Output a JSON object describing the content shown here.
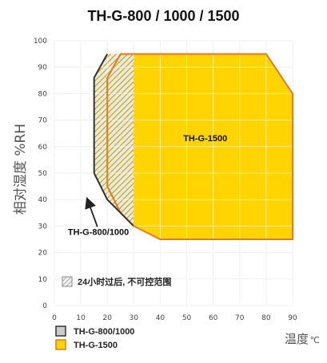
{
  "chart_data": {
    "type": "area",
    "title": "TH-G-800 / 1000 / 1500",
    "xlabel": "温度",
    "xlabel_unit": "℃",
    "ylabel": "相对湿度 %RH",
    "xlim": [
      0,
      90
    ],
    "ylim": [
      0,
      100
    ],
    "x_ticks": [
      0,
      10,
      20,
      30,
      40,
      50,
      60,
      70,
      80,
      90
    ],
    "y_ticks": [
      0,
      10,
      20,
      30,
      40,
      50,
      60,
      70,
      80,
      90,
      100
    ],
    "grid": true,
    "series": [
      {
        "name": "TH-G-1500",
        "fill": "#FFD400",
        "stroke": "#E8791A",
        "points": [
          [
            20,
            86
          ],
          [
            25,
            95
          ],
          [
            80,
            95
          ],
          [
            90,
            80
          ],
          [
            90,
            25
          ],
          [
            40,
            25
          ],
          [
            30,
            30
          ],
          [
            25,
            35
          ],
          [
            20,
            45
          ]
        ]
      },
      {
        "name": "TH-G-800/1000",
        "fill": "#CCCCCC",
        "stroke": "#333333",
        "points": [
          [
            15,
            86
          ],
          [
            20,
            95
          ],
          [
            30,
            95
          ],
          [
            30,
            30
          ],
          [
            25,
            35
          ],
          [
            20,
            40
          ],
          [
            15,
            50
          ]
        ]
      }
    ],
    "hatched_region": {
      "label": "24小时过后, 不可控范围",
      "points": [
        [
          15,
          86
        ],
        [
          20,
          95
        ],
        [
          30,
          95
        ],
        [
          30,
          30
        ],
        [
          25,
          35
        ],
        [
          20,
          40
        ],
        [
          15,
          50
        ]
      ]
    },
    "annotations": [
      {
        "text": "TH-G-1500",
        "x": 57,
        "y": 62
      },
      {
        "text": "TH-G-800/1000",
        "x": 6,
        "y": 27,
        "arrow_to": [
          12.5,
          40
        ]
      }
    ],
    "legend": {
      "placement": "bottom-left",
      "items": [
        {
          "label": "TH-G-800/1000",
          "fill": "#CCCCCC",
          "stroke": "#333333"
        },
        {
          "label": "TH-G-1500",
          "fill": "#FFD400",
          "stroke": "#E8791A"
        }
      ]
    },
    "plot_background": "#FFFFFF",
    "grid_color": "#E2E2E2"
  }
}
